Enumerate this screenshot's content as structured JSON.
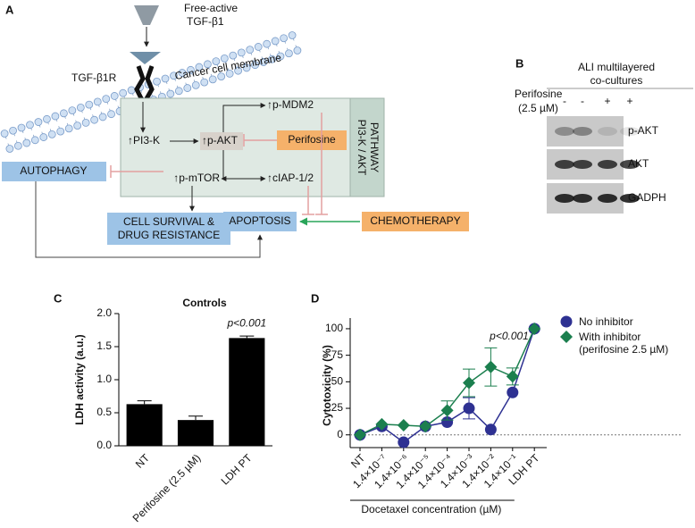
{
  "panel_a": {
    "label": "A",
    "ligand": [
      "Free-active",
      "TGF-β1"
    ],
    "receptor": "TGF-β1R",
    "membrane": "Cancer cell membrane",
    "pathway": [
      "PI3-K / AKT",
      "PATHWAY"
    ],
    "nodes": {
      "pi3k": "↑PI3-K",
      "pakt": "↑p-AKT",
      "perifosine": "Perifosine",
      "mdm2": "↑p-MDM2",
      "mtor": "↑p-mTOR",
      "ciap": "↑cIAP-1/2",
      "autophagy": "AUTOPHAGY",
      "survival": [
        "CELL SURVIVAL &",
        "DRUG RESISTANCE"
      ],
      "apoptosis": "APOPTOSIS",
      "chemotherapy": "CHEMOTHERAPY"
    }
  },
  "panel_b": {
    "label": "B",
    "title": [
      "ALI multilayered",
      "co-cultures"
    ],
    "treatment": [
      "Perifosine",
      "(2.5 µM)"
    ],
    "lanes": [
      "-",
      "-",
      "+",
      "+"
    ],
    "rows": [
      "p-AKT",
      "AKT",
      "GADPH"
    ]
  },
  "chart_data": [
    {
      "panel_label": "C",
      "type": "bar",
      "title": "Controls",
      "y_label": "LDH activity (a.u.)",
      "categories": [
        "NT",
        "Perifosine (2.5 µM)",
        "LDH PT"
      ],
      "values": [
        0.63,
        0.39,
        1.63
      ],
      "errors": [
        0.05,
        0.06,
        0.03
      ],
      "color": "#000000",
      "ylim": [
        0,
        2
      ],
      "yticks": [
        {
          "value": 0,
          "label": "0.0"
        },
        {
          "value": 0.5,
          "label": "0.5"
        },
        {
          "value": 1,
          "label": "1.0"
        },
        {
          "value": 1.5,
          "label": "1.5"
        },
        {
          "value": 2,
          "label": "2.0"
        }
      ],
      "annotation": "p<0.001"
    },
    {
      "panel_label": "D",
      "type": "line",
      "x_label": "Docetaxel concentration (µM)",
      "y_label": "Cytotoxicity (%)",
      "categories": [
        "NT",
        "1.4×10⁻⁷",
        "1.4×10⁻⁶",
        "1.4×10⁻⁵",
        "1.4×10⁻⁴",
        "1.4×10⁻³",
        "1.4×10⁻²",
        "1.4×10⁻¹",
        "LDH PT"
      ],
      "series": [
        {
          "name": "No inhibitor",
          "color": "#2e3192",
          "marker": "circle",
          "values": [
            0,
            8,
            -7,
            8,
            12,
            25,
            5,
            40,
            100
          ],
          "errors": [
            null,
            null,
            null,
            null,
            null,
            10,
            null,
            null,
            null
          ]
        },
        {
          "name": "With inhibitor (perifosine 2.5 µM)",
          "color": "#1b7f4e",
          "marker": "diamond",
          "values": [
            0,
            10,
            9,
            8,
            23,
            49,
            64,
            55,
            100
          ],
          "errors": [
            null,
            null,
            null,
            null,
            9,
            13,
            18,
            8,
            null
          ]
        }
      ],
      "ylim": [
        -12,
        105
      ],
      "yticks": [
        0,
        25,
        50,
        75,
        100
      ],
      "annotation": "p<0.001",
      "legend": "upper right"
    }
  ]
}
